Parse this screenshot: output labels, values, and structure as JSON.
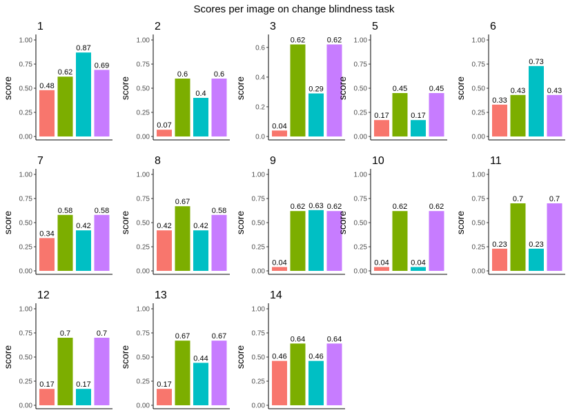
{
  "chart_data": {
    "type": "bar",
    "title": "Scores per image on change blindness task",
    "ylabel": "score",
    "xlabel": "",
    "grid": false,
    "legend": "none",
    "series_colors": [
      "#F8766D",
      "#7CAE00",
      "#00BFC4",
      "#C77CFF"
    ],
    "panels": [
      {
        "label": "1",
        "values": [
          0.48,
          0.62,
          0.87,
          0.69
        ],
        "ylim": [
          0,
          1.0
        ],
        "yticks": [
          "0.00",
          "0.25",
          "0.50",
          "0.75",
          "1.00"
        ]
      },
      {
        "label": "2",
        "values": [
          0.07,
          0.6,
          0.4,
          0.6
        ],
        "ylim": [
          0,
          1.0
        ],
        "yticks": [
          "0.00",
          "0.25",
          "0.50",
          "0.75",
          "1.00"
        ]
      },
      {
        "label": "3",
        "values": [
          0.04,
          0.62,
          0.29,
          0.62
        ],
        "ylim": [
          0,
          0.65
        ],
        "yticks": [
          "0.0",
          "0.2",
          "0.4",
          "0.6"
        ]
      },
      {
        "label": "5",
        "values": [
          0.17,
          0.45,
          0.17,
          0.45
        ],
        "ylim": [
          0,
          1.0
        ],
        "yticks": [
          "0.00",
          "0.25",
          "0.50",
          "0.75",
          "1.00"
        ]
      },
      {
        "label": "6",
        "values": [
          0.33,
          0.43,
          0.73,
          0.43
        ],
        "ylim": [
          0,
          1.0
        ],
        "yticks": [
          "0.00",
          "0.25",
          "0.50",
          "0.75",
          "1.00"
        ]
      },
      {
        "label": "7",
        "values": [
          0.34,
          0.58,
          0.42,
          0.58
        ],
        "ylim": [
          0,
          1.0
        ],
        "yticks": [
          "0.00",
          "0.25",
          "0.50",
          "0.75",
          "1.00"
        ]
      },
      {
        "label": "8",
        "values": [
          0.42,
          0.67,
          0.42,
          0.58
        ],
        "ylim": [
          0,
          1.0
        ],
        "yticks": [
          "0.00",
          "0.25",
          "0.50",
          "0.75",
          "1.00"
        ]
      },
      {
        "label": "9",
        "values": [
          0.04,
          0.62,
          0.63,
          0.62
        ],
        "ylim": [
          0,
          1.0
        ],
        "yticks": [
          "0.00",
          "0.25",
          "0.50",
          "0.75",
          "1.00"
        ]
      },
      {
        "label": "10",
        "values": [
          0.04,
          0.62,
          0.04,
          0.62
        ],
        "ylim": [
          0,
          1.0
        ],
        "yticks": [
          "0.00",
          "0.25",
          "0.50",
          "0.75",
          "1.00"
        ]
      },
      {
        "label": "11",
        "values": [
          0.23,
          0.7,
          0.23,
          0.7
        ],
        "ylim": [
          0,
          1.0
        ],
        "yticks": [
          "0.00",
          "0.25",
          "0.50",
          "0.75",
          "1.00"
        ]
      },
      {
        "label": "12",
        "values": [
          0.17,
          0.7,
          0.17,
          0.7
        ],
        "ylim": [
          0,
          1.0
        ],
        "yticks": [
          "0.00",
          "0.25",
          "0.50",
          "0.75",
          "1.00"
        ]
      },
      {
        "label": "13",
        "values": [
          0.17,
          0.67,
          0.44,
          0.67
        ],
        "ylim": [
          0,
          1.0
        ],
        "yticks": [
          "0.00",
          "0.25",
          "0.50",
          "0.75",
          "1.00"
        ]
      },
      {
        "label": "14",
        "values": [
          0.46,
          0.64,
          0.46,
          0.64
        ],
        "ylim": [
          0,
          1.0
        ],
        "yticks": [
          "0.00",
          "0.25",
          "0.50",
          "0.75",
          "1.00"
        ]
      }
    ]
  }
}
